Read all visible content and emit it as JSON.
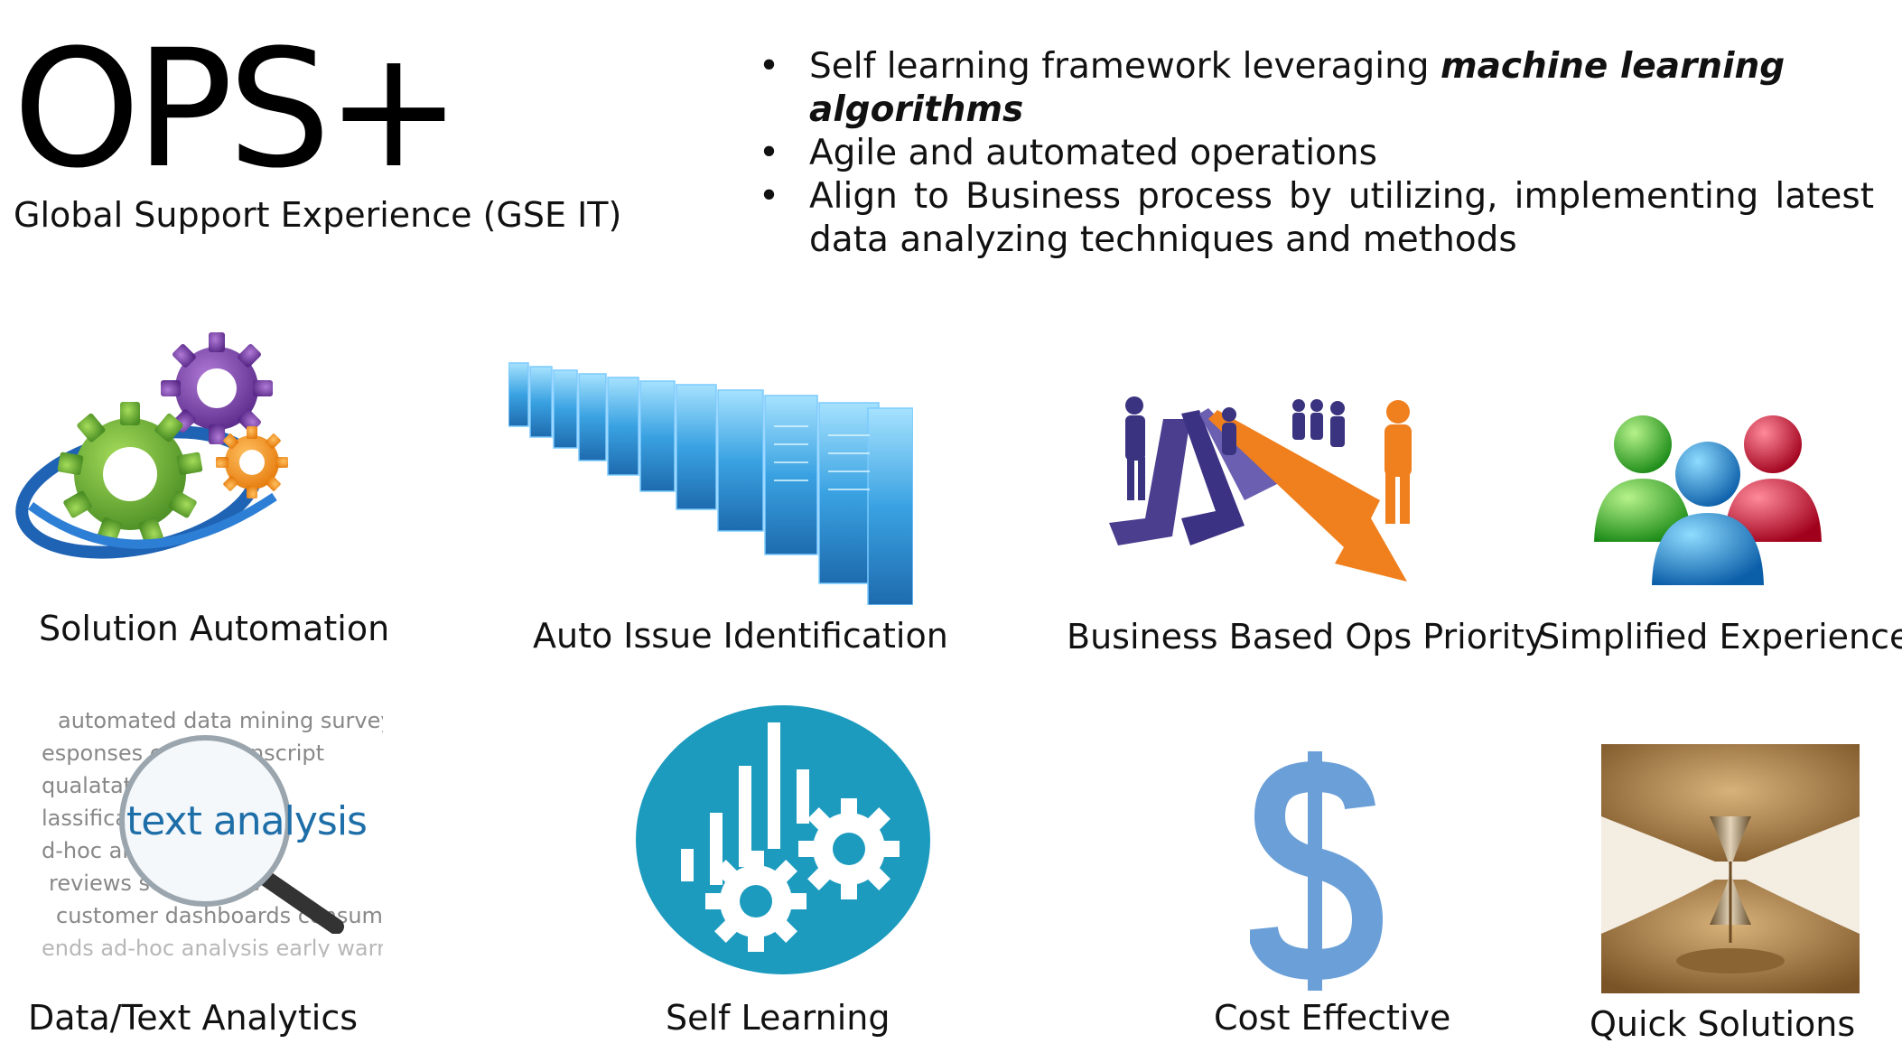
{
  "header": {
    "title": "OPS+",
    "subtitle": "Global Support Experience (GSE IT)"
  },
  "bullets": [
    {
      "text": "Self learning framework leveraging ",
      "emphasis": "machine learning algorithms"
    },
    {
      "text": "Agile and automated operations"
    },
    {
      "text": "Align to Business process by utilizing, implementing latest data analyzing techniques and methods"
    }
  ],
  "features": [
    {
      "label": "Solution Automation",
      "icon": "gears-icon"
    },
    {
      "label": "Auto Issue Identification",
      "icon": "data-screens-icon"
    },
    {
      "label": "Business Based Ops Priority",
      "icon": "arrows-people-icon"
    },
    {
      "label": "Simplified Experience",
      "icon": "users-icon"
    },
    {
      "label": "Data/Text Analytics",
      "icon": "text-analysis-icon"
    },
    {
      "label": "Self Learning",
      "icon": "learning-gears-icon"
    },
    {
      "label": "Cost Effective",
      "icon": "dollar-icon"
    },
    {
      "label": "Quick Solutions",
      "icon": "hourglass-icon"
    }
  ],
  "text_analysis": {
    "magnified": "text analysis",
    "lines": [
      "automated data mining survey",
      "esponses co        ter transcript",
      "qualatativ          root cause",
      "lassificati                insights",
      "d-hoc an              s product",
      "reviews se            t voi   the",
      "customer dashboards consume",
      "ends ad-hoc analysis early warnin"
    ]
  },
  "colors": {
    "accent_teal": "#1c9bbf",
    "dollar_blue": "#6a9fd8",
    "arrow_orange": "#f07f1d",
    "arrow_purple": "#4b3e8f",
    "gear_purple": "#7b3fa6",
    "gear_green": "#6bb33b",
    "gear_orange": "#f28f1c",
    "user_green": "#2fa52a",
    "user_blue": "#1b7fc9",
    "user_red": "#c8102e"
  }
}
